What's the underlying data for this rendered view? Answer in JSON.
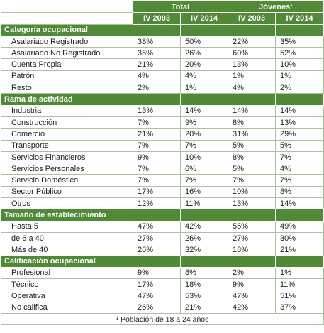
{
  "table": {
    "header": {
      "groups": [
        "Total",
        "Jóvenes¹"
      ],
      "columns": [
        "IV 2003",
        "IV 2014",
        "IV 2003",
        "IV 2014"
      ]
    },
    "sections": [
      {
        "title": "Categoría ocupacional",
        "rows": [
          [
            "Asalariado Registrado",
            "38%",
            "50%",
            "22%",
            "35%"
          ],
          [
            "Asalariado No Registrado",
            "36%",
            "26%",
            "60%",
            "52%"
          ],
          [
            "Cuenta Propia",
            "21%",
            "20%",
            "13%",
            "10%"
          ],
          [
            "Patrón",
            "4%",
            "4%",
            "1%",
            "1%"
          ],
          [
            "Resto",
            "2%",
            "1%",
            "4%",
            "2%"
          ]
        ]
      },
      {
        "title": "Rama de actividad",
        "rows": [
          [
            "Industria",
            "13%",
            "14%",
            "14%",
            "14%"
          ],
          [
            "Construcción",
            "7%",
            "9%",
            "8%",
            "13%"
          ],
          [
            "Comercio",
            "21%",
            "20%",
            "31%",
            "29%"
          ],
          [
            "Transporte",
            "7%",
            "7%",
            "5%",
            "5%"
          ],
          [
            "Servicios Financieros",
            "9%",
            "10%",
            "8%",
            "7%"
          ],
          [
            "Servicios Personales",
            "7%",
            "6%",
            "5%",
            "4%"
          ],
          [
            "Servicio Doméstico",
            "7%",
            "7%",
            "7%",
            "7%"
          ],
          [
            "Sector Público",
            "17%",
            "16%",
            "10%",
            "8%"
          ],
          [
            "Otros",
            "12%",
            "11%",
            "13%",
            "14%"
          ]
        ]
      },
      {
        "title": "Tamaño de establecimiento",
        "rows": [
          [
            "Hasta 5",
            "47%",
            "42%",
            "55%",
            "49%"
          ],
          [
            "de 6 a 40",
            "27%",
            "26%",
            "27%",
            "30%"
          ],
          [
            "Más de 40",
            "26%",
            "32%",
            "18%",
            "21%"
          ]
        ]
      },
      {
        "title": "Calificación ocupacional",
        "rows": [
          [
            "Profesional",
            "9%",
            "8%",
            "2%",
            "1%"
          ],
          [
            "Técnico",
            "17%",
            "18%",
            "9%",
            "11%"
          ],
          [
            "Operativa",
            "47%",
            "53%",
            "47%",
            "51%"
          ],
          [
            "No califica",
            "26%",
            "21%",
            "42%",
            "37%"
          ]
        ]
      }
    ],
    "footnote": "¹ Población de 18 a 24 años"
  }
}
